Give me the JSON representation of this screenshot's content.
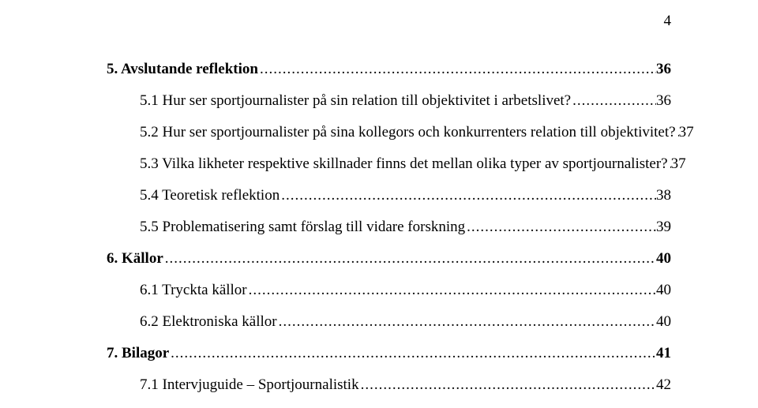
{
  "page_number": "4",
  "typography": {
    "font_family": "Times New Roman",
    "base_fontsize_pt": 14
  },
  "colors": {
    "text": "#000000",
    "background": "#ffffff"
  },
  "toc": [
    {
      "label": "5. Avslutande reflektion",
      "page": "36",
      "bold": true,
      "indent": 0
    },
    {
      "label": "5.1 Hur ser sportjournalister på sin relation till objektivitet i arbetslivet?",
      "page": "36",
      "bold": false,
      "indent": 1
    },
    {
      "label": "5.2 Hur ser sportjournalister på sina kollegors och konkurrenters relation till objektivitet?",
      "page": "37",
      "bold": false,
      "indent": 1
    },
    {
      "label": "5.3 Vilka likheter respektive skillnader finns det mellan olika typer av sportjournalister?",
      "page": "37",
      "bold": false,
      "indent": 1
    },
    {
      "label": "5.4 Teoretisk reflektion",
      "page": "38",
      "bold": false,
      "indent": 1
    },
    {
      "label": "5.5 Problematisering samt förslag till vidare forskning",
      "page": "39",
      "bold": false,
      "indent": 1
    },
    {
      "label": "6. Källor",
      "page": "40",
      "bold": true,
      "indent": 0
    },
    {
      "label": "6.1 Tryckta källor",
      "page": "40",
      "bold": false,
      "indent": 1
    },
    {
      "label": "6.2 Elektroniska källor",
      "page": "40",
      "bold": false,
      "indent": 1
    },
    {
      "label": "7. Bilagor",
      "page": "41",
      "bold": true,
      "indent": 0
    },
    {
      "label": "7.1 Intervjuguide – Sportjournalistik",
      "page": "42",
      "bold": false,
      "indent": 1
    }
  ]
}
